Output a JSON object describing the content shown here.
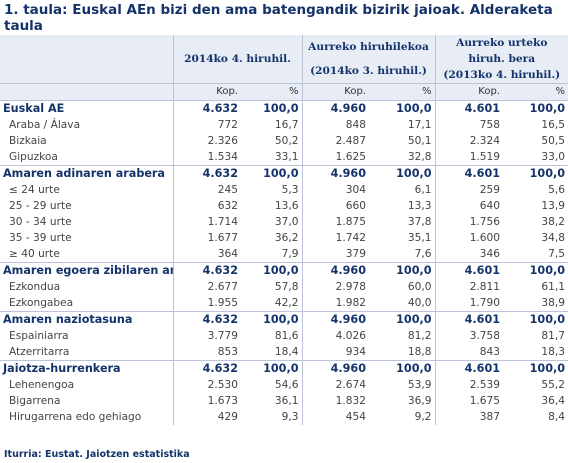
{
  "title": "1. taula: Euskal AEn bizi den ama batengandik bizirik jaioak. Alderaketa taula",
  "headers": {
    "col1": "2014ko 4. hiruhil.",
    "col2_line1": "Aurreko hiruhilekoa",
    "col2_line2": "(2014ko 3. hiruhil.)",
    "col3_line1": "Aurreko urteko",
    "col3_line2": "hiruh. bera",
    "col3_line3": "(2013ko 4. hiruhil.)",
    "kop": "Kop.",
    "pct": "%"
  },
  "sections": [
    {
      "label": "Euskal AE",
      "values": [
        "4.632",
        "100,0",
        "4.960",
        "100,0",
        "4.601",
        "100,0"
      ],
      "rows": [
        {
          "label": "Araba / Álava",
          "values": [
            "772",
            "16,7",
            "848",
            "17,1",
            "758",
            "16,5"
          ]
        },
        {
          "label": "Bizkaia",
          "values": [
            "2.326",
            "50,2",
            "2.487",
            "50,1",
            "2.324",
            "50,5"
          ]
        },
        {
          "label": "Gipuzkoa",
          "values": [
            "1.534",
            "33,1",
            "1.625",
            "32,8",
            "1.519",
            "33,0"
          ]
        }
      ]
    },
    {
      "label": "Amaren adinaren arabera",
      "values": [
        "4.632",
        "100,0",
        "4.960",
        "100,0",
        "4.601",
        "100,0"
      ],
      "rows": [
        {
          "label": "≤ 24 urte",
          "values": [
            "245",
            "5,3",
            "304",
            "6,1",
            "259",
            "5,6"
          ]
        },
        {
          "label": "25 - 29 urte",
          "values": [
            "632",
            "13,6",
            "660",
            "13,3",
            "640",
            "13,9"
          ]
        },
        {
          "label": "30 - 34 urte",
          "values": [
            "1.714",
            "37,0",
            "1.875",
            "37,8",
            "1.756",
            "38,2"
          ]
        },
        {
          "label": "35 - 39 urte",
          "values": [
            "1.677",
            "36,2",
            "1.742",
            "35,1",
            "1.600",
            "34,8"
          ]
        },
        {
          "label": "≥ 40 urte",
          "values": [
            "364",
            "7,9",
            "379",
            "7,6",
            "346",
            "7,5"
          ]
        }
      ]
    },
    {
      "label": "Amaren egoera zibilaren arabera",
      "values": [
        "4.632",
        "100,0",
        "4.960",
        "100,0",
        "4.601",
        "100,0"
      ],
      "rows": [
        {
          "label": "Ezkondua",
          "values": [
            "2.677",
            "57,8",
            "2.978",
            "60,0",
            "2.811",
            "61,1"
          ]
        },
        {
          "label": "Ezkongabea",
          "values": [
            "1.955",
            "42,2",
            "1.982",
            "40,0",
            "1.790",
            "38,9"
          ]
        }
      ]
    },
    {
      "label": "Amaren naziotasuna",
      "values": [
        "4.632",
        "100,0",
        "4.960",
        "100,0",
        "4.601",
        "100,0"
      ],
      "rows": [
        {
          "label": "Espainiarra",
          "values": [
            "3.779",
            "81,6",
            "4.026",
            "81,2",
            "3.758",
            "81,7"
          ]
        },
        {
          "label": "Atzerritarra",
          "values": [
            "853",
            "18,4",
            "934",
            "18,8",
            "843",
            "18,3"
          ]
        }
      ]
    },
    {
      "label": "Jaiotza-hurrenkera",
      "values": [
        "4.632",
        "100,0",
        "4.960",
        "100,0",
        "4.601",
        "100,0"
      ],
      "rows": [
        {
          "label": "Lehenengoa",
          "values": [
            "2.530",
            "54,6",
            "2.674",
            "53,9",
            "2.539",
            "55,2"
          ]
        },
        {
          "label": "Bigarrena",
          "values": [
            "1.673",
            "36,1",
            "1.832",
            "36,9",
            "1.675",
            "36,4"
          ]
        },
        {
          "label": "Hirugarrena edo gehiago",
          "values": [
            "429",
            "9,3",
            "454",
            "9,2",
            "387",
            "8,4"
          ]
        }
      ]
    }
  ],
  "source": "Iturria: Eustat. Jaiotzen estatistika"
}
